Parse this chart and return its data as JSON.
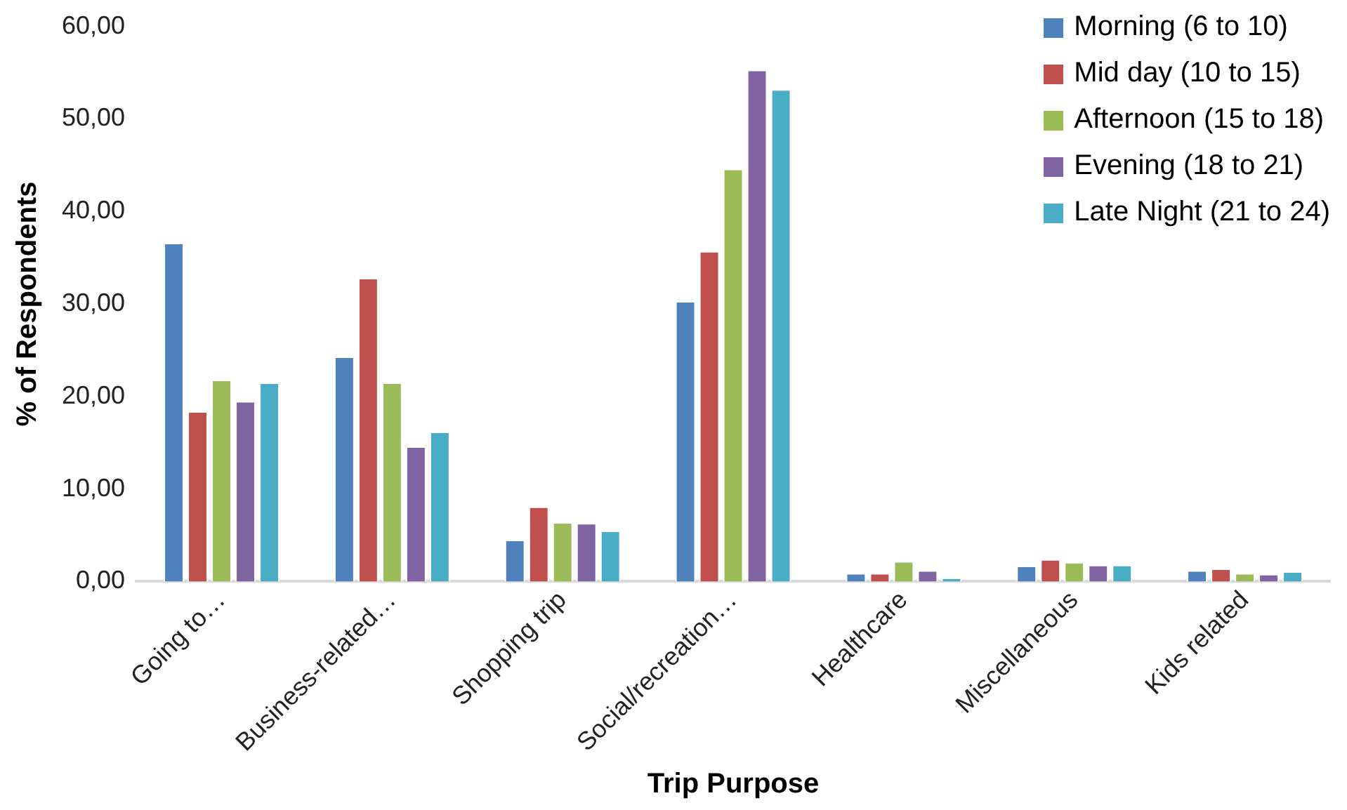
{
  "chart_data": {
    "type": "bar",
    "xlabel": "Trip Purpose",
    "ylabel": "% of Respondents",
    "categories": [
      "Going to…",
      "Business-related…",
      "Shopping trip",
      "Social/recreation…",
      "Healthcare",
      "Miscellaneous",
      "Kids related"
    ],
    "series": [
      {
        "name": "Morning (6 to 10)",
        "color": "#4f81bd",
        "values": [
          36.6,
          24.3,
          4.5,
          30.3,
          0.9,
          1.7,
          1.2
        ]
      },
      {
        "name": "Mid day (10 to 15)",
        "color": "#c0504d",
        "values": [
          18.4,
          32.8,
          8.1,
          35.7,
          0.9,
          2.4,
          1.4
        ]
      },
      {
        "name": "Afternoon (15 to 18)",
        "color": "#9bbb59",
        "values": [
          21.8,
          21.5,
          6.4,
          44.6,
          2.2,
          2.1,
          0.9
        ]
      },
      {
        "name": "Evening (18 to 21)",
        "color": "#8064a2",
        "values": [
          19.5,
          14.6,
          6.3,
          55.3,
          1.2,
          1.8,
          0.8
        ]
      },
      {
        "name": "Late Night (21 to 24)",
        "color": "#4bacc6",
        "values": [
          21.5,
          16.2,
          5.5,
          53.2,
          0.4,
          1.8,
          1.1
        ]
      }
    ],
    "ylim": [
      0,
      60
    ],
    "yticks": [
      {
        "value": 0,
        "label": "0,00"
      },
      {
        "value": 10,
        "label": "10,00"
      },
      {
        "value": 20,
        "label": "20,00"
      },
      {
        "value": 30,
        "label": "30,00"
      },
      {
        "value": 40,
        "label": "40,00"
      },
      {
        "value": 50,
        "label": "50,00"
      },
      {
        "value": 60,
        "label": "60,00"
      }
    ],
    "grid": false,
    "legend": "top right"
  }
}
